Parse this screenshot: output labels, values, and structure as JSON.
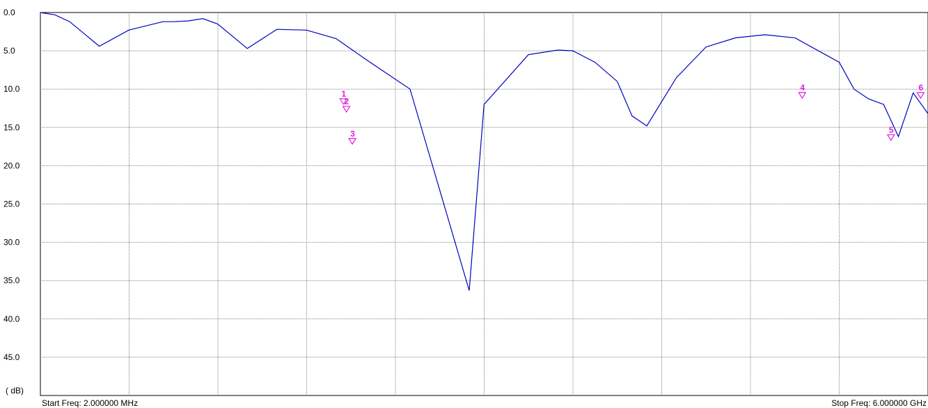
{
  "chart_data": {
    "type": "line",
    "title": "",
    "xlabel": "",
    "ylabel": "( dB)",
    "start_freq_label": "Start Freq: 2.000000 MHz",
    "stop_freq_label": "Stop Freq: 6.000000 GHz",
    "x_unit": "MHz",
    "xlim": [
      2,
      6000
    ],
    "ylim": [
      0,
      50
    ],
    "y_axis_inverted": true,
    "y_ticks": [
      "0.0",
      "5.0",
      "10.0",
      "15.0",
      "20.0",
      "25.0",
      "30.0",
      "35.0",
      "40.0",
      "45.0"
    ],
    "x_grid_divisions": 10,
    "grid": true,
    "trace_color": "#0000c0",
    "marker_color": "#e020e0",
    "series": [
      {
        "x": [
          2,
          100,
          200,
          400,
          600,
          830,
          900,
          1000,
          1100,
          1200,
          1400,
          1600,
          1800,
          2000,
          2200,
          2500,
          2900,
          3000,
          3300,
          3500,
          3600,
          3750,
          3900,
          4000,
          4100,
          4300,
          4500,
          4700,
          4900,
          5100,
          5400,
          5500,
          5600,
          5700,
          5800,
          5900,
          6000
        ],
        "y": [
          0.0,
          0.3,
          1.2,
          4.4,
          2.3,
          1.2,
          1.2,
          1.1,
          0.8,
          1.5,
          4.7,
          2.2,
          2.3,
          3.4,
          6.1,
          10.0,
          36.3,
          12.0,
          5.5,
          4.9,
          5.0,
          6.5,
          9.0,
          13.5,
          14.8,
          8.5,
          4.5,
          3.3,
          2.9,
          3.3,
          6.5,
          10.0,
          11.3,
          12.0,
          16.2,
          10.5,
          13.2
        ]
      }
    ],
    "markers": [
      {
        "label": "1",
        "x": 2050,
        "y": 11.8
      },
      {
        "label": "2",
        "x": 2070,
        "y": 12.8
      },
      {
        "label": "3",
        "x": 2110,
        "y": 17.0
      },
      {
        "label": "4",
        "x": 5150,
        "y": 11.0
      },
      {
        "label": "5",
        "x": 5750,
        "y": 16.5
      },
      {
        "label": "6",
        "x": 5950,
        "y": 11.0
      }
    ]
  }
}
